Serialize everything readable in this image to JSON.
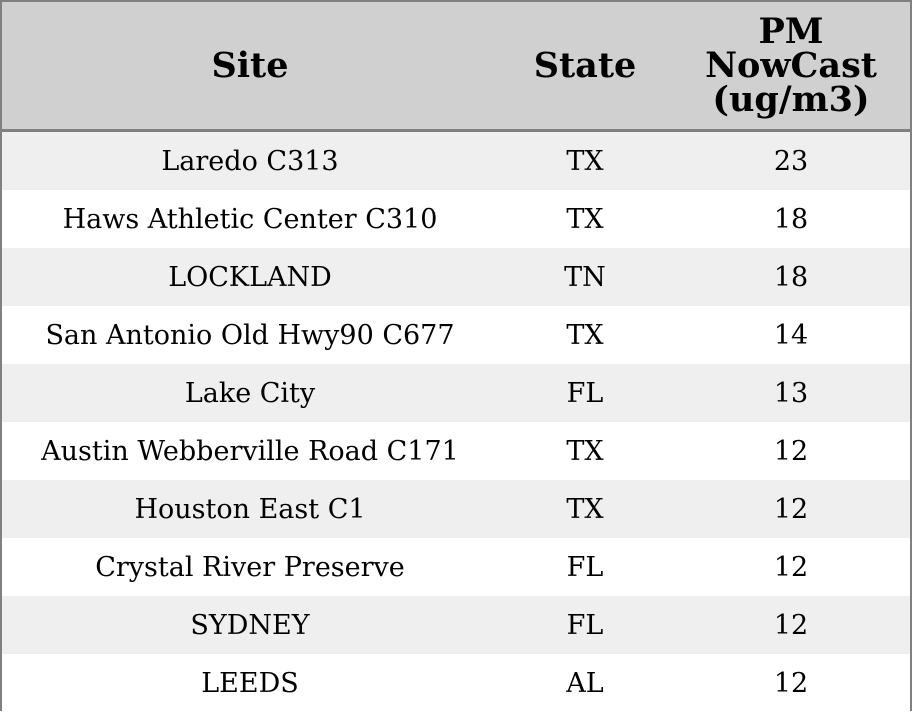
{
  "table": {
    "headers": {
      "site": "Site",
      "state": "State",
      "pm": "PM\nNowCast\n(ug/m3)"
    },
    "rows": [
      {
        "site": "Laredo C313",
        "state": "TX",
        "pm": "23"
      },
      {
        "site": "Haws Athletic Center C310",
        "state": "TX",
        "pm": "18"
      },
      {
        "site": "LOCKLAND",
        "state": "TN",
        "pm": "18"
      },
      {
        "site": "San Antonio Old Hwy90 C677",
        "state": "TX",
        "pm": "14"
      },
      {
        "site": "Lake City",
        "state": "FL",
        "pm": "13"
      },
      {
        "site": "Austin Webberville Road C171",
        "state": "TX",
        "pm": "12"
      },
      {
        "site": "Houston East C1",
        "state": "TX",
        "pm": "12"
      },
      {
        "site": "Crystal River Preserve",
        "state": "FL",
        "pm": "12"
      },
      {
        "site": "SYDNEY",
        "state": "FL",
        "pm": "12"
      },
      {
        "site": "LEEDS",
        "state": "AL",
        "pm": "12"
      }
    ],
    "colors": {
      "header_bg": "#d0d0d0",
      "row_alt_bg": "#efefef",
      "row_bg": "#ffffff",
      "border": "#808080"
    }
  }
}
